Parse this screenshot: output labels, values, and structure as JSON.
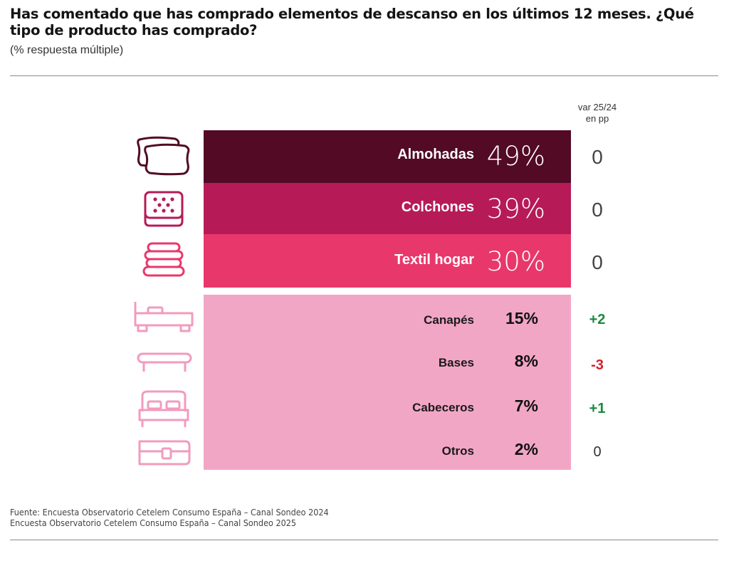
{
  "header": {
    "title": "Has comentado que has comprado elementos de descanso en los últimos 12 meses. ¿Qué tipo de producto has comprado?",
    "subtitle": "(% respuesta múltiple)"
  },
  "chart_data": {
    "type": "table",
    "var_header_line1": "var 25/24",
    "var_header_line2": "en pp",
    "rows": [
      {
        "label": "Almohadas",
        "value": "49%",
        "var": "0",
        "icon": "pillows-icon"
      },
      {
        "label": "Colchones",
        "value": "39%",
        "var": "0",
        "icon": "mattress-icon"
      },
      {
        "label": "Textil hogar",
        "value": "30%",
        "var": "0",
        "icon": "folded-textiles-icon"
      },
      {
        "label": "Canapés",
        "value": "15%",
        "var": "+2",
        "icon": "storage-bed-icon"
      },
      {
        "label": "Bases",
        "value": "8%",
        "var": "-3",
        "icon": "bed-base-icon"
      },
      {
        "label": "Cabeceros",
        "value": "7%",
        "var": "+1",
        "icon": "headboard-bed-icon"
      },
      {
        "label": "Otros",
        "value": "2%",
        "var": "0",
        "icon": "other-icon"
      }
    ],
    "colors": {
      "almohadas": "#520a25",
      "colchones": "#b61b57",
      "textil": "#e8386b",
      "rest": "#f2a6c6",
      "positive": "#1a8a3a",
      "negative": "#d41f2a"
    }
  },
  "footer": {
    "line1": "Fuente: Encuesta Observatorio Cetelem Consumo España – Canal Sondeo 2024",
    "line2": "Encuesta Observatorio Cetelem Consumo España – Canal Sondeo 2025"
  }
}
